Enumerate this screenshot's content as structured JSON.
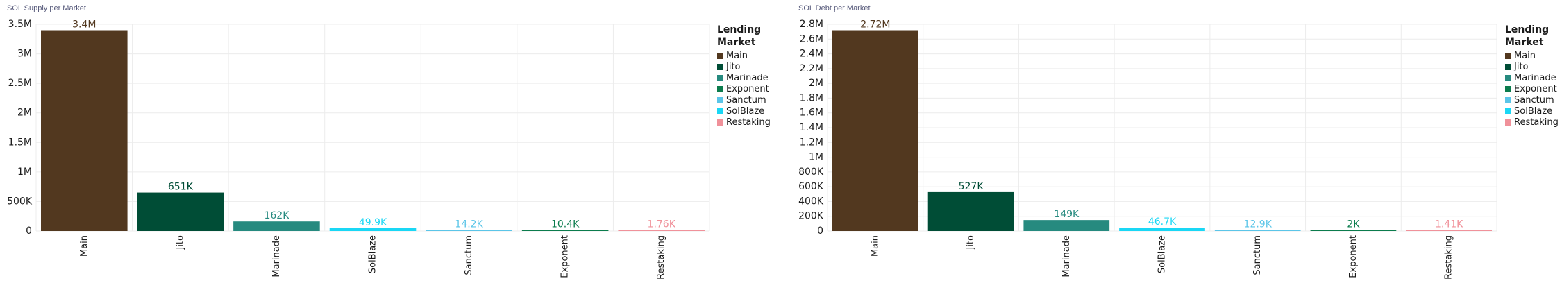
{
  "legend": {
    "title": "Lending Market",
    "items": [
      {
        "label": "Main",
        "color": "#52381f"
      },
      {
        "label": "Jito",
        "color": "#004d36"
      },
      {
        "label": "Marinade",
        "color": "#268a7f"
      },
      {
        "label": "Exponent",
        "color": "#0b7c4d"
      },
      {
        "label": "Sanctum",
        "color": "#5bc5e8"
      },
      {
        "label": "SolBlaze",
        "color": "#1ad7f5"
      },
      {
        "label": "Restaking",
        "color": "#f0919a"
      }
    ]
  },
  "chart_data": [
    {
      "type": "bar",
      "title": "SOL Supply per Market",
      "categories": [
        "Main",
        "Jito",
        "Marinade",
        "SolBlaze",
        "Sanctum",
        "Exponent",
        "Restaking"
      ],
      "values": [
        3400000,
        651000,
        162000,
        49900,
        14200,
        10400,
        1760
      ],
      "data_labels": [
        "3.4M",
        "651K",
        "162K",
        "49.9K",
        "14.2K",
        "10.4K",
        "1.76K"
      ],
      "colors": [
        "#52381f",
        "#004d36",
        "#268a7f",
        "#1ad7f5",
        "#5bc5e8",
        "#0b7c4d",
        "#f0919a"
      ],
      "ylim": [
        0,
        3500000
      ],
      "yticks": [
        0,
        500000,
        1000000,
        1500000,
        2000000,
        2500000,
        3000000,
        3500000
      ],
      "ytick_labels": [
        "0",
        "500K",
        "1M",
        "1.5M",
        "2M",
        "2.5M",
        "3M",
        "3.5M"
      ],
      "grid": true,
      "legend_position": "right"
    },
    {
      "type": "bar",
      "title": "SOL Debt per Market",
      "categories": [
        "Main",
        "Jito",
        "Marinade",
        "SolBlaze",
        "Sanctum",
        "Exponent",
        "Restaking"
      ],
      "values": [
        2720000,
        527000,
        149000,
        46700,
        12900,
        2000,
        1410
      ],
      "data_labels": [
        "2.72M",
        "527K",
        "149K",
        "46.7K",
        "12.9K",
        "2K",
        "1.41K"
      ],
      "colors": [
        "#52381f",
        "#004d36",
        "#268a7f",
        "#1ad7f5",
        "#5bc5e8",
        "#0b7c4d",
        "#f0919a"
      ],
      "ylim": [
        0,
        2800000
      ],
      "yticks": [
        0,
        200000,
        400000,
        600000,
        800000,
        1000000,
        1200000,
        1400000,
        1600000,
        1800000,
        2000000,
        2200000,
        2400000,
        2600000,
        2800000
      ],
      "ytick_labels": [
        "0",
        "200K",
        "400K",
        "600K",
        "800K",
        "1M",
        "1.2M",
        "1.4M",
        "1.6M",
        "1.8M",
        "2M",
        "2.2M",
        "2.4M",
        "2.6M",
        "2.8M"
      ],
      "grid": true,
      "legend_position": "right"
    }
  ]
}
